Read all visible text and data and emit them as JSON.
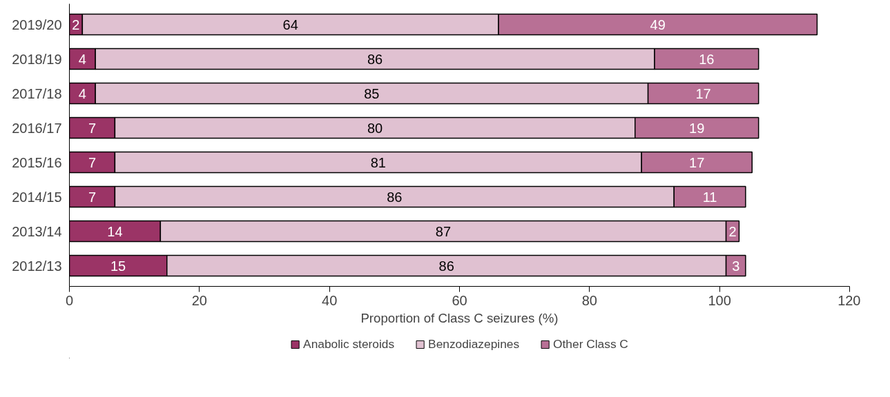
{
  "chart_data": {
    "type": "bar",
    "orientation": "horizontal",
    "stacked": true,
    "data_labels": true,
    "grid": false,
    "legend": "bottom",
    "xlabel": "Proportion of Class C seizures (%)",
    "categories": [
      "2019/20",
      "2018/19",
      "2017/18",
      "2016/17",
      "2015/16",
      "2014/15",
      "2013/14",
      "2012/13"
    ],
    "xlim": [
      0,
      120
    ],
    "xticks": [
      0,
      20,
      40,
      60,
      80,
      100,
      120
    ],
    "series": [
      {
        "name": "Anabolic steroids",
        "color": "#9b3466",
        "values": [
          2,
          4,
          4,
          7,
          7,
          7,
          14,
          15
        ]
      },
      {
        "name": "Benzodiazepines",
        "color": "#e0c1d1",
        "values": [
          64,
          86,
          85,
          80,
          81,
          86,
          87,
          86
        ]
      },
      {
        "name": "Other Class C",
        "color": "#b87095",
        "values": [
          49,
          16,
          17,
          19,
          17,
          11,
          2,
          3
        ]
      }
    ]
  }
}
